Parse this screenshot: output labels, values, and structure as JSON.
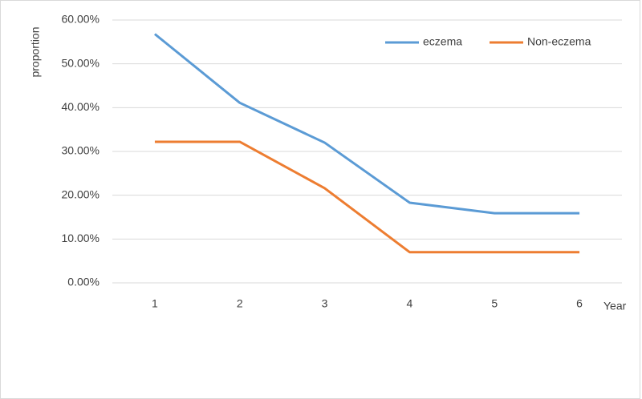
{
  "chart_data": {
    "type": "line",
    "y_label": "proportion",
    "x_label": "Year",
    "categories": [
      "1",
      "2",
      "3",
      "4",
      "5",
      "6"
    ],
    "series": [
      {
        "name": "eczema",
        "color": "#5b9bd5",
        "values": [
          56.8,
          41.1,
          32.0,
          18.3,
          15.9,
          15.9
        ]
      },
      {
        "name": "Non-eczema",
        "color": "#ed7d31",
        "values": [
          32.2,
          32.2,
          21.6,
          7.0,
          7.0,
          7.0
        ]
      }
    ],
    "ylim": [
      0,
      60
    ],
    "yticks": [
      {
        "value": 0,
        "label": "0.00%"
      },
      {
        "value": 10,
        "label": "10.00%"
      },
      {
        "value": 20,
        "label": "20.00%"
      },
      {
        "value": 30,
        "label": "30.00%"
      },
      {
        "value": 40,
        "label": "40.00%"
      },
      {
        "value": 50,
        "label": "50.00%"
      },
      {
        "value": 60,
        "label": "60.00%"
      }
    ],
    "grid": true,
    "legend": "top-right"
  }
}
